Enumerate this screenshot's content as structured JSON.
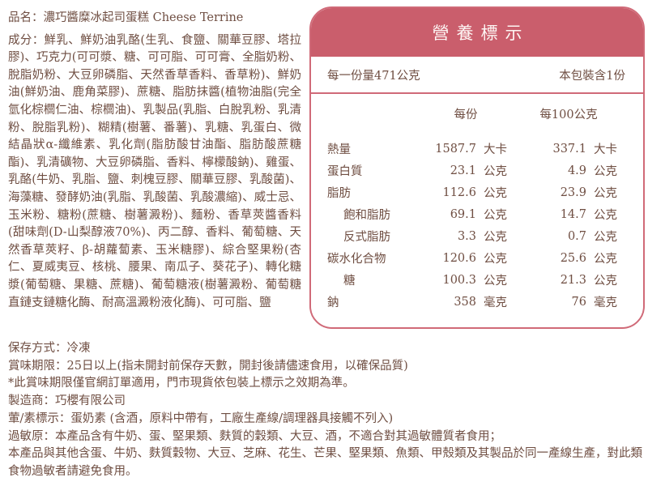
{
  "colors": {
    "accent_header_bg": "#ca5e6c",
    "panel_border": "#d06a78",
    "body_text": "#6f4e42",
    "header_text": "#fdf6f4"
  },
  "product": {
    "name_label": "品名：",
    "name": "濃巧醬糜冰起司蛋糕 Cheese Terrine",
    "ingredients_label": "成分：",
    "ingredients": "鮮乳、鮮奶油乳酪(生乳、食鹽、關華豆膠、塔拉膠)、巧克力(可可漿、糖、可可脂、可可膏、全脂奶粉、脫脂奶粉、大豆卵磷脂、天然香草香料、香草粉)、鮮奶油(鮮奶油、鹿角菜膠)、蔗糖、脂肪抹醬(植物油脂(完全氫化棕櫚仁油、棕櫚油)、乳製品(乳脂、白脫乳粉、乳清粉、脫脂乳粉)、糊精(樹薯、番薯)、乳糖、乳蛋白、微結晶狀α-纖維素、乳化劑(脂肪酸甘油酯、脂肪酸蔗糖酯)、乳清礦物、大豆卵磷脂、香料、檸檬酸鈉)、雞蛋、乳酪(牛奶、乳脂、鹽、刺槐豆膠、關華豆膠、乳酸菌)、海藻糖、發酵奶油(乳脂、乳酸菌、乳酸濃縮)、威士忌、玉米粉、糖粉(蔗糖、樹薯澱粉)、麵粉、香草莢醬香料(甜味劑(D-山梨醇液70%)、丙二醇、香料、葡萄糖、天然香草莢籽、β-胡蘿蔔素、玉米糖膠)、綜合堅果粉(杏仁、夏威夷豆、核桃、腰果、南瓜子、葵花子)、轉化糖漿(葡萄糖、果糖、蔗糖)、葡萄糖液(樹薯澱粉、葡萄糖直鏈支鏈糖化酶、耐高溫澱粉液化酶)、可可脂、鹽"
  },
  "nutrition": {
    "title": "營養標示",
    "serving_size": "每一份量471公克",
    "servings_per_pack": "本包裝含1份",
    "col_per_serving": "每份",
    "col_per_100g": "每100公克",
    "rows": [
      {
        "name": "熱量",
        "per_serving": "1587.7",
        "per_serving_unit": "大卡",
        "per_100g": "337.1",
        "per_100g_unit": "大卡"
      },
      {
        "name": "蛋白質",
        "per_serving": "23.1",
        "per_serving_unit": "公克",
        "per_100g": "4.9",
        "per_100g_unit": "公克"
      },
      {
        "name": "脂肪",
        "per_serving": "112.6",
        "per_serving_unit": "公克",
        "per_100g": "23.9",
        "per_100g_unit": "公克"
      },
      {
        "name": "飽和脂肪",
        "per_serving": "69.1",
        "per_serving_unit": "公克",
        "per_100g": "14.7",
        "per_100g_unit": "公克"
      },
      {
        "name": "反式脂肪",
        "per_serving": "3.3",
        "per_serving_unit": "公克",
        "per_100g": "0.7",
        "per_100g_unit": "公克"
      },
      {
        "name": "碳水化合物",
        "per_serving": "120.6",
        "per_serving_unit": "公克",
        "per_100g": "25.6",
        "per_100g_unit": "公克"
      },
      {
        "name": "糖",
        "per_serving": "100.3",
        "per_serving_unit": "公克",
        "per_100g": "21.3",
        "per_100g_unit": "公克"
      },
      {
        "name": "鈉",
        "per_serving": "358",
        "per_serving_unit": "毫克",
        "per_100g": "76",
        "per_100g_unit": "毫克"
      }
    ]
  },
  "footer": {
    "lines": [
      "保存方式：冷凍",
      "賞味期限：25日以上(指未開封前保存天數，開封後請儘速食用，以確保品質)",
      "*此賞味期限僅官網訂單適用，門市現貨依包裝上標示之效期為準。",
      "製造商：巧櫻有限公司",
      "葷/素標示：蛋奶素 (含酒，原料中帶有，工廠生產線/調理器具接觸不列入)",
      "過敏原：本產品含有牛奶、蛋、堅果類、麩質的穀類、大豆、酒，不適合對其過敏體質者食用；",
      "本產品與其他含蛋、牛奶、麩質穀物、大豆、芝麻、花生、芒果、堅果類、魚類、甲殼類及其製品於同一產線生產，對此類食物過敏者請避免食用。"
    ]
  }
}
